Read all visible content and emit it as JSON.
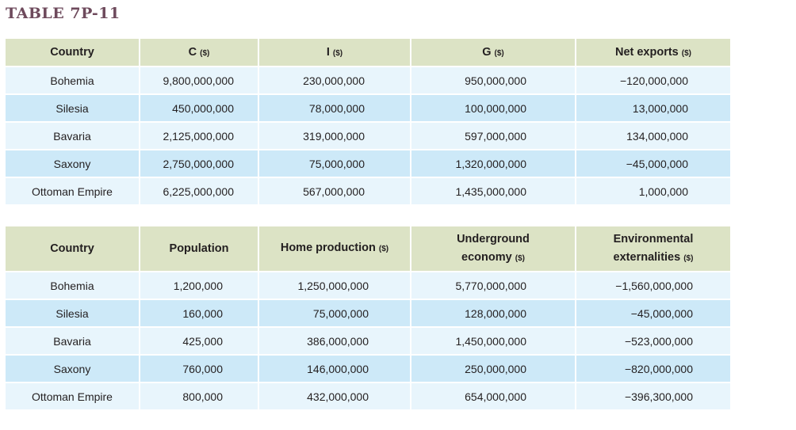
{
  "title": "TABLE 7P-11",
  "colors": {
    "header": "#dce3c5",
    "row_light": "#e8f5fc",
    "row_dark": "#cde9f8",
    "title": "#6e4a5c"
  },
  "table1": {
    "headers": [
      {
        "label": "Country",
        "unit": ""
      },
      {
        "label": "C",
        "unit": "($)"
      },
      {
        "label": "I",
        "unit": "($)"
      },
      {
        "label": "G",
        "unit": "($)"
      },
      {
        "label": "Net exports",
        "unit": "($)"
      }
    ],
    "rows": [
      [
        "Bohemia",
        "9,800,000,000",
        "230,000,000",
        "950,000,000",
        "−120,000,000"
      ],
      [
        "Silesia",
        "450,000,000",
        "78,000,000",
        "100,000,000",
        "13,000,000"
      ],
      [
        "Bavaria",
        "2,125,000,000",
        "319,000,000",
        "597,000,000",
        "134,000,000"
      ],
      [
        "Saxony",
        "2,750,000,000",
        "75,000,000",
        "1,320,000,000",
        "−45,000,000"
      ],
      [
        "Ottoman Empire",
        "6,225,000,000",
        "567,000,000",
        "1,435,000,000",
        "1,000,000"
      ]
    ]
  },
  "table2": {
    "headers": [
      {
        "label": "Country",
        "unit": ""
      },
      {
        "label": "Population",
        "unit": ""
      },
      {
        "label": "Home production",
        "unit": "($)"
      },
      {
        "label": "Underground",
        "label2": "economy",
        "unit": "($)"
      },
      {
        "label": "Environmental",
        "label2": "externalities",
        "unit": "($)"
      }
    ],
    "rows": [
      [
        "Bohemia",
        "1,200,000",
        "1,250,000,000",
        "5,770,000,000",
        "−1,560,000,000"
      ],
      [
        "Silesia",
        "160,000",
        "75,000,000",
        "128,000,000",
        "−45,000,000"
      ],
      [
        "Bavaria",
        "425,000",
        "386,000,000",
        "1,450,000,000",
        "−523,000,000"
      ],
      [
        "Saxony",
        "760,000",
        "146,000,000",
        "250,000,000",
        "−820,000,000"
      ],
      [
        "Ottoman Empire",
        "800,000",
        "432,000,000",
        "654,000,000",
        "−396,300,000"
      ]
    ]
  }
}
